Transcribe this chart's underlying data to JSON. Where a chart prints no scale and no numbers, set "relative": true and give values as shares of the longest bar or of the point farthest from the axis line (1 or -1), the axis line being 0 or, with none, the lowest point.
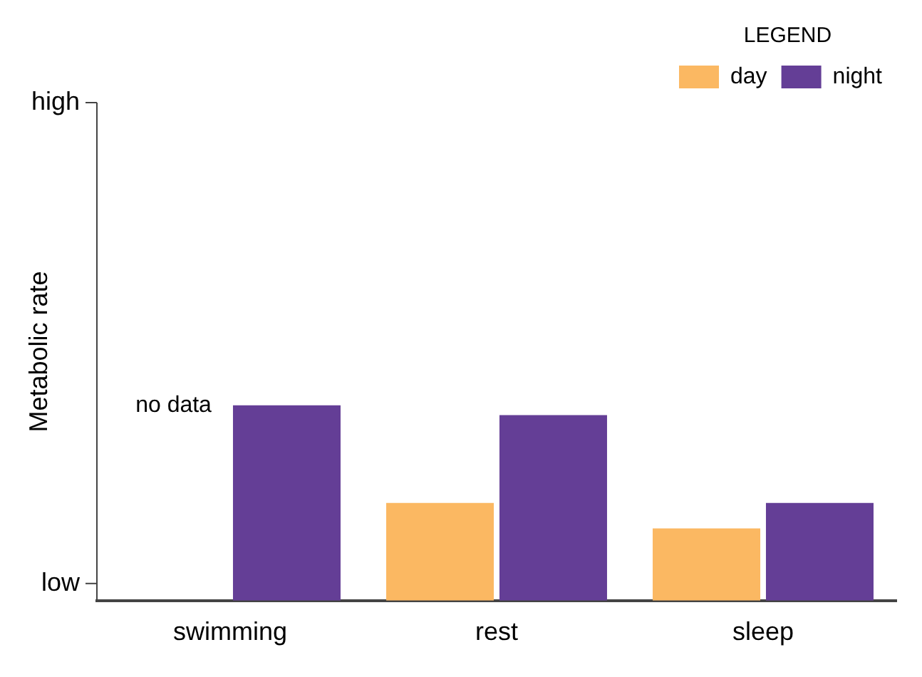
{
  "chart_data": {
    "type": "bar",
    "relative": true,
    "ylabel": "Metabolic rate",
    "categories": [
      "swimming",
      "rest",
      "sleep"
    ],
    "series": [
      {
        "name": "day",
        "color": "#fbb862",
        "values": [
          null,
          0.5,
          0.37
        ]
      },
      {
        "name": "night",
        "color": "#643e96",
        "values": [
          1,
          0.95,
          0.5
        ]
      }
    ],
    "legend_title": "LEGEND",
    "legend": "top right",
    "grid": false,
    "annotations": [
      "low",
      "high",
      {
        "text": "no data",
        "x": "swimming",
        "y": 1
      }
    ]
  }
}
